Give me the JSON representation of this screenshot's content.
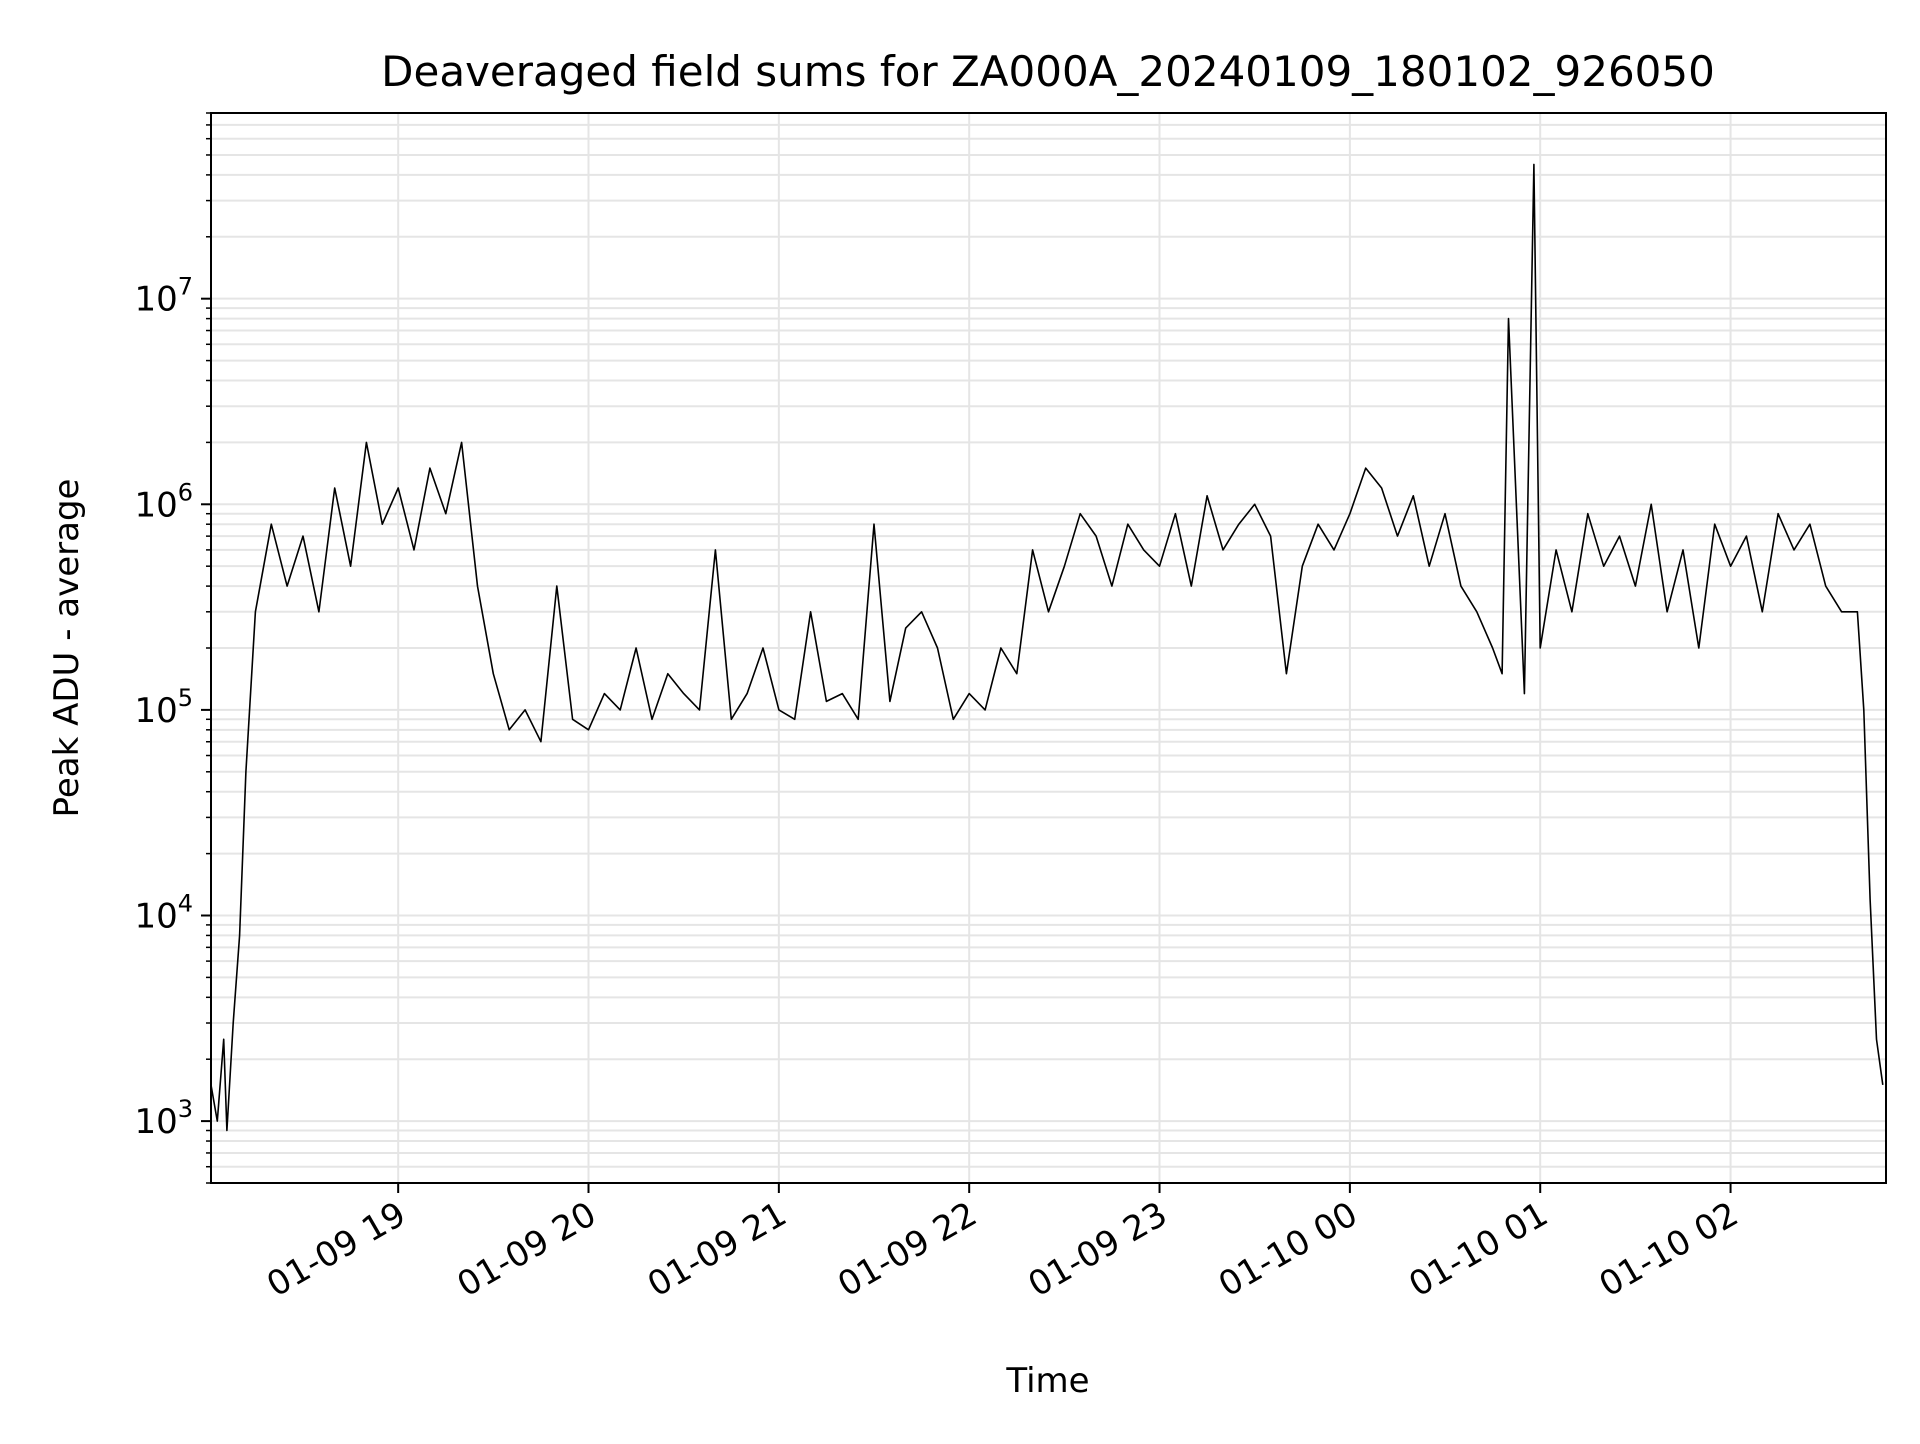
{
  "chart_data": {
    "type": "line",
    "title": "Deaveraged field sums for ZA000A_20240109_180102_926050",
    "xlabel": "Time",
    "ylabel": "Peak ADU - average",
    "yscale": "log",
    "ylim": [
      500,
      80000000
    ],
    "xlim": [
      "2024-01-09 18:01",
      "2024-01-10 02:49"
    ],
    "grid": true,
    "line_color": "#000000",
    "grid_color": "#e5e5e5",
    "x_ticks": [
      {
        "label": "01-09 19",
        "value": "2024-01-09 19:00"
      },
      {
        "label": "01-09 20",
        "value": "2024-01-09 20:00"
      },
      {
        "label": "01-09 21",
        "value": "2024-01-09 21:00"
      },
      {
        "label": "01-09 22",
        "value": "2024-01-09 22:00"
      },
      {
        "label": "01-09 23",
        "value": "2024-01-09 23:00"
      },
      {
        "label": "01-10 00",
        "value": "2024-01-10 00:00"
      },
      {
        "label": "01-10 01",
        "value": "2024-01-10 01:00"
      },
      {
        "label": "01-10 02",
        "value": "2024-01-10 02:00"
      }
    ],
    "y_ticks": [
      {
        "base": "10",
        "exp": "3",
        "value": 1000
      },
      {
        "base": "10",
        "exp": "4",
        "value": 10000
      },
      {
        "base": "10",
        "exp": "5",
        "value": 100000
      },
      {
        "base": "10",
        "exp": "6",
        "value": 1000000
      },
      {
        "base": "10",
        "exp": "7",
        "value": 10000000
      }
    ],
    "series": [
      {
        "x": [
          "2024-01-09 18:01",
          "2024-01-09 18:03",
          "2024-01-09 18:05",
          "2024-01-09 18:06",
          "2024-01-09 18:08",
          "2024-01-09 18:10",
          "2024-01-09 18:12",
          "2024-01-09 18:15",
          "2024-01-09 18:20",
          "2024-01-09 18:25",
          "2024-01-09 18:30",
          "2024-01-09 18:35",
          "2024-01-09 18:40",
          "2024-01-09 18:45",
          "2024-01-09 18:50",
          "2024-01-09 18:55",
          "2024-01-09 19:00",
          "2024-01-09 19:05",
          "2024-01-09 19:10",
          "2024-01-09 19:15",
          "2024-01-09 19:20",
          "2024-01-09 19:25",
          "2024-01-09 19:30",
          "2024-01-09 19:35",
          "2024-01-09 19:40",
          "2024-01-09 19:45",
          "2024-01-09 19:50",
          "2024-01-09 19:55",
          "2024-01-09 20:00",
          "2024-01-09 20:05",
          "2024-01-09 20:10",
          "2024-01-09 20:15",
          "2024-01-09 20:20",
          "2024-01-09 20:25",
          "2024-01-09 20:30",
          "2024-01-09 20:35",
          "2024-01-09 20:40",
          "2024-01-09 20:45",
          "2024-01-09 20:50",
          "2024-01-09 20:55",
          "2024-01-09 21:00",
          "2024-01-09 21:05",
          "2024-01-09 21:10",
          "2024-01-09 21:15",
          "2024-01-09 21:20",
          "2024-01-09 21:25",
          "2024-01-09 21:30",
          "2024-01-09 21:35",
          "2024-01-09 21:40",
          "2024-01-09 21:45",
          "2024-01-09 21:50",
          "2024-01-09 21:55",
          "2024-01-09 22:00",
          "2024-01-09 22:05",
          "2024-01-09 22:10",
          "2024-01-09 22:15",
          "2024-01-09 22:20",
          "2024-01-09 22:25",
          "2024-01-09 22:30",
          "2024-01-09 22:35",
          "2024-01-09 22:40",
          "2024-01-09 22:45",
          "2024-01-09 22:50",
          "2024-01-09 22:55",
          "2024-01-09 23:00",
          "2024-01-09 23:05",
          "2024-01-09 23:10",
          "2024-01-09 23:15",
          "2024-01-09 23:20",
          "2024-01-09 23:25",
          "2024-01-09 23:30",
          "2024-01-09 23:35",
          "2024-01-09 23:40",
          "2024-01-09 23:45",
          "2024-01-09 23:50",
          "2024-01-09 23:55",
          "2024-01-10 00:00",
          "2024-01-10 00:05",
          "2024-01-10 00:10",
          "2024-01-10 00:15",
          "2024-01-10 00:20",
          "2024-01-10 00:25",
          "2024-01-10 00:30",
          "2024-01-10 00:35",
          "2024-01-10 00:40",
          "2024-01-10 00:45",
          "2024-01-10 00:48",
          "2024-01-10 00:50",
          "2024-01-10 00:55",
          "2024-01-10 00:58",
          "2024-01-10 01:00",
          "2024-01-10 01:05",
          "2024-01-10 01:10",
          "2024-01-10 01:15",
          "2024-01-10 01:20",
          "2024-01-10 01:25",
          "2024-01-10 01:30",
          "2024-01-10 01:35",
          "2024-01-10 01:40",
          "2024-01-10 01:45",
          "2024-01-10 01:50",
          "2024-01-10 01:55",
          "2024-01-10 02:00",
          "2024-01-10 02:05",
          "2024-01-10 02:10",
          "2024-01-10 02:15",
          "2024-01-10 02:20",
          "2024-01-10 02:25",
          "2024-01-10 02:30",
          "2024-01-10 02:35",
          "2024-01-10 02:40",
          "2024-01-10 02:42",
          "2024-01-10 02:44",
          "2024-01-10 02:46",
          "2024-01-10 02:48"
        ],
        "y": [
          1500,
          1000,
          2500,
          900,
          3000,
          8000,
          50000,
          300000,
          800000,
          400000,
          700000,
          300000,
          1200000,
          500000,
          2000000,
          800000,
          1200000,
          600000,
          1500000,
          900000,
          2000000,
          400000,
          150000,
          80000,
          100000,
          70000,
          400000,
          90000,
          80000,
          120000,
          100000,
          200000,
          90000,
          150000,
          120000,
          100000,
          600000,
          90000,
          120000,
          200000,
          100000,
          90000,
          300000,
          110000,
          120000,
          90000,
          800000,
          110000,
          250000,
          300000,
          200000,
          90000,
          120000,
          100000,
          200000,
          150000,
          600000,
          300000,
          500000,
          900000,
          700000,
          400000,
          800000,
          600000,
          500000,
          900000,
          400000,
          1100000,
          600000,
          800000,
          1000000,
          700000,
          150000,
          500000,
          800000,
          600000,
          900000,
          1500000,
          1200000,
          700000,
          1100000,
          500000,
          900000,
          400000,
          300000,
          200000,
          150000,
          8000000,
          120000,
          45000000,
          200000,
          600000,
          300000,
          900000,
          500000,
          700000,
          400000,
          1000000,
          300000,
          600000,
          200000,
          800000,
          500000,
          700000,
          300000,
          900000,
          600000,
          800000,
          400000,
          300000,
          300000,
          100000,
          12000,
          2500,
          1500
        ]
      }
    ]
  }
}
